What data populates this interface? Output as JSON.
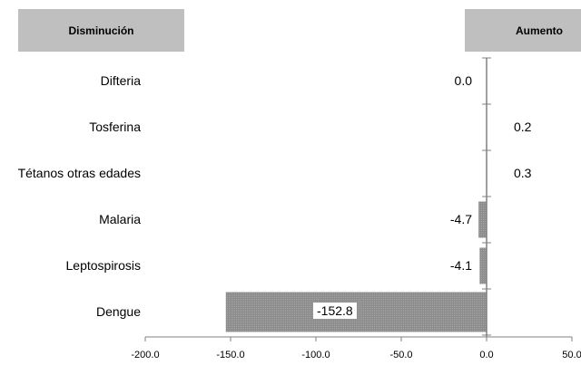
{
  "chart_data": {
    "type": "bar",
    "orientation": "horizontal",
    "header_left": "Disminución",
    "header_right": "Aumento",
    "categories": [
      "Difteria",
      "Tosferina",
      "Tétanos otras edades",
      "Malaria",
      "Leptospirosis",
      "Dengue"
    ],
    "values": [
      0.0,
      0.2,
      0.3,
      -4.7,
      -4.1,
      -152.8
    ],
    "value_labels": [
      "0.0",
      "0.2",
      "0.3",
      "-4.7",
      "-4.1",
      "-152.8"
    ],
    "x_ticks": [
      "-200.0",
      "-150.0",
      "-100.0",
      "-50.0",
      "0.0",
      "50.0"
    ],
    "xlim": [
      -200,
      50
    ],
    "grid": false,
    "colors": {
      "bar": "#8c8c8c",
      "axis": "#808080",
      "header": "#bfbfbf"
    }
  }
}
